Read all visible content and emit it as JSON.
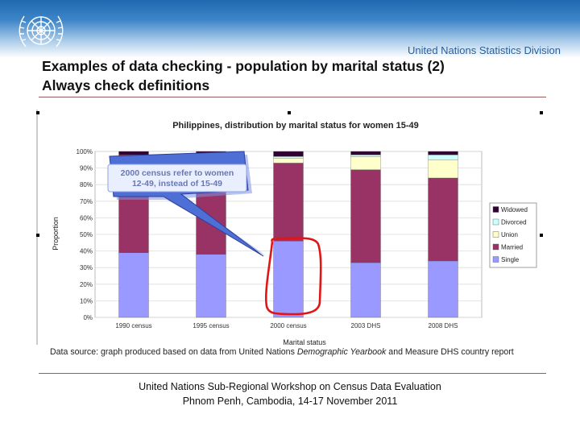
{
  "header": {
    "org_name": "United Nations Statistics Division",
    "title_line1": "Examples of data checking - population by marital status (2)",
    "title_line2": "Always check definitions",
    "logo_icon": "un-emblem-icon"
  },
  "chart_data": {
    "type": "bar",
    "stacked": true,
    "title": "Philippines, distribution by marital status for women 15-49",
    "xlabel": "Marital status",
    "ylabel": "Proportion",
    "ylim": [
      0,
      100
    ],
    "yticks": [
      "0%",
      "10%",
      "20%",
      "30%",
      "40%",
      "50%",
      "60%",
      "70%",
      "80%",
      "90%",
      "100%"
    ],
    "categories": [
      "1990 census",
      "1995 census",
      "2000 census",
      "2003 DHS",
      "2008 DHS"
    ],
    "series": [
      {
        "name": "Single",
        "color": "#9999ff",
        "values": [
          39,
          38,
          46,
          33,
          34
        ]
      },
      {
        "name": "Married",
        "color": "#993366",
        "values": [
          59,
          60,
          47,
          56,
          50
        ]
      },
      {
        "name": "Union",
        "color": "#ffffcc",
        "values": [
          0,
          0,
          3,
          8,
          11
        ]
      },
      {
        "name": "Divorced",
        "color": "#ccffff",
        "values": [
          0,
          0,
          1,
          1,
          3
        ]
      },
      {
        "name": "Widowed",
        "color": "#330033",
        "values": [
          2,
          2,
          3,
          2,
          2
        ]
      }
    ],
    "legend_order": [
      "Widowed",
      "Divorced",
      "Union",
      "Married",
      "Single"
    ],
    "legend_position": "right",
    "callout": {
      "line1": "2000 census refer to women",
      "line2": "12-49, instead of 15-49"
    },
    "highlight_category": "2000 census"
  },
  "source": {
    "prefix": "Data source: graph produced based on data from United Nations ",
    "italic": "Demographic Yearbook",
    "suffix": " and Measure DHS country report"
  },
  "footer": {
    "line1": "United Nations Sub-Regional Workshop on Census Data Evaluation",
    "line2": "Phnom Penh, Cambodia, 14-17 November 2011"
  }
}
